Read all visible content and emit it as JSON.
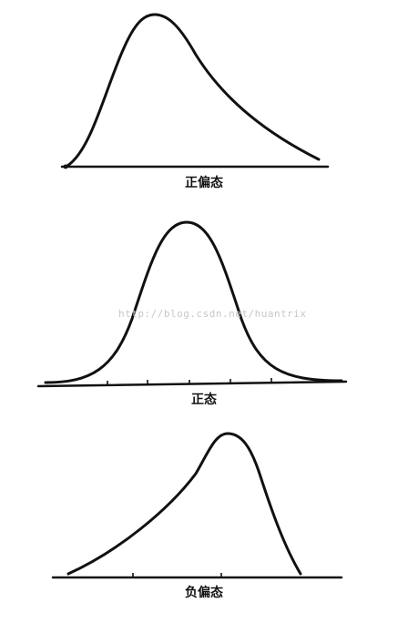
{
  "figures": [
    {
      "id": "positive-skew",
      "caption": "正偏态",
      "shape": "right-skewed"
    },
    {
      "id": "normal",
      "caption": "正态",
      "shape": "symmetric"
    },
    {
      "id": "negative-skew",
      "caption": "负偏态",
      "shape": "left-skewed"
    }
  ],
  "watermark": "http://blog.csdn.net/huantrix",
  "colors": {
    "ink": "#111111",
    "watermark": "#c8c8c8",
    "background": "#ffffff"
  }
}
